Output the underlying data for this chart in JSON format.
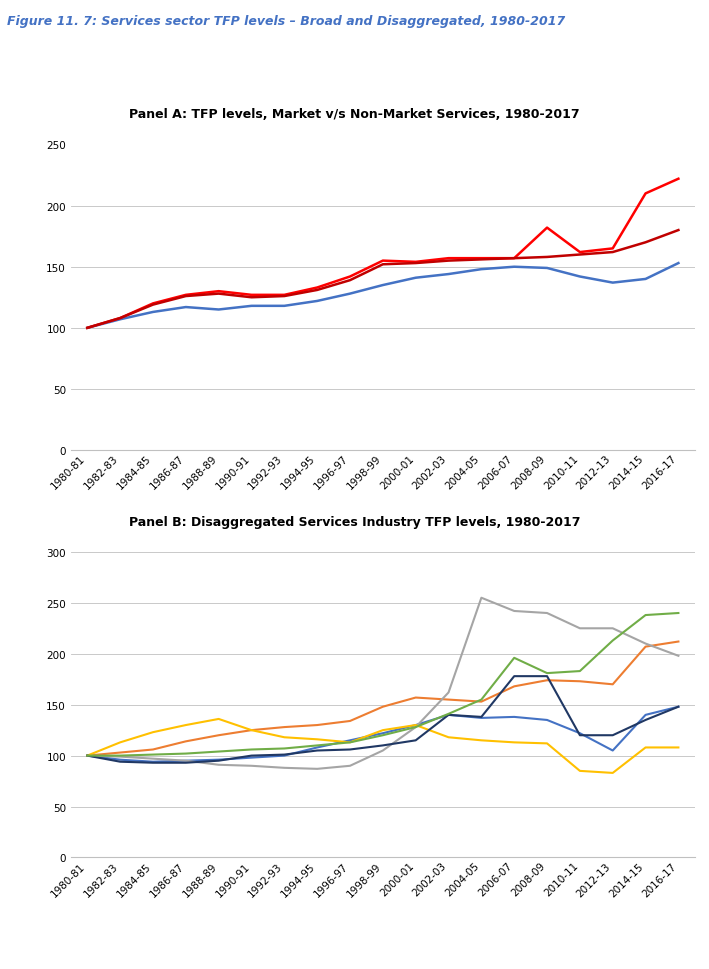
{
  "figure_title": "Figure 11. 7: Services sector TFP levels – Broad and Disaggregated, 1980-2017",
  "panel_a_title": "Panel A: TFP levels, Market v/s Non-Market Services, 1980-2017",
  "panel_b_title": "Panel B: Disaggregated Services Industry TFP levels, 1980-2017",
  "x_labels": [
    "1980-81",
    "1982-83",
    "1984-85",
    "1986-87",
    "1988-89",
    "1990-91",
    "1992-93",
    "1994-95",
    "1996-97",
    "1998-99",
    "2000-01",
    "2002-03",
    "2004-05",
    "2006-07",
    "2008-09",
    "2010-11",
    "2012-13",
    "2014-15",
    "2016-17"
  ],
  "panel_a": {
    "market_services": [
      100,
      107,
      113,
      117,
      115,
      118,
      118,
      122,
      128,
      135,
      141,
      144,
      148,
      150,
      149,
      142,
      137,
      140,
      153
    ],
    "non_market_services": [
      100,
      108,
      120,
      127,
      130,
      127,
      127,
      133,
      142,
      155,
      154,
      157,
      157,
      157,
      182,
      162,
      165,
      210,
      222
    ],
    "all_services": [
      100,
      108,
      119,
      126,
      128,
      125,
      126,
      131,
      139,
      152,
      153,
      155,
      156,
      157,
      158,
      160,
      162,
      170,
      180
    ],
    "colors": {
      "market_services": "#4472C4",
      "non_market_services": "#FF0000",
      "all_services": "#C00000"
    },
    "ylim": [
      0,
      250
    ],
    "yticks": [
      0,
      50,
      100,
      150,
      200,
      250
    ]
  },
  "panel_b": {
    "trade": [
      100,
      96,
      94,
      95,
      96,
      98,
      100,
      108,
      115,
      122,
      130,
      140,
      137,
      138,
      135,
      122,
      105,
      140,
      148
    ],
    "financial_services": [
      100,
      103,
      106,
      114,
      120,
      125,
      128,
      130,
      134,
      148,
      157,
      155,
      153,
      168,
      174,
      173,
      170,
      207,
      212
    ],
    "post_telecom": [
      100,
      99,
      97,
      95,
      91,
      90,
      88,
      87,
      90,
      105,
      128,
      162,
      255,
      242,
      240,
      225,
      225,
      210,
      198
    ],
    "business_service": [
      100,
      113,
      123,
      130,
      136,
      125,
      118,
      116,
      113,
      125,
      130,
      118,
      115,
      113,
      112,
      85,
      83,
      108,
      108
    ],
    "hotels_restaurants": [
      100,
      94,
      93,
      93,
      95,
      100,
      101,
      105,
      106,
      110,
      115,
      140,
      138,
      178,
      178,
      120,
      120,
      135,
      148
    ],
    "transport_storage": [
      100,
      100,
      101,
      102,
      104,
      106,
      107,
      110,
      113,
      120,
      128,
      141,
      155,
      196,
      181,
      183,
      213,
      238,
      240
    ],
    "colors": {
      "trade": "#4472C4",
      "financial_services": "#ED7D31",
      "post_telecom": "#A5A5A5",
      "business_service": "#FFC000",
      "hotels_restaurants": "#203864",
      "transport_storage": "#70AD47"
    },
    "ylim": [
      0,
      300
    ],
    "yticks": [
      0,
      50,
      100,
      150,
      200,
      250,
      300
    ]
  },
  "figure_title_color": "#4472C4",
  "figure_title_fontsize": 9,
  "panel_title_fontsize": 9,
  "tick_fontsize": 7.5,
  "legend_fontsize": 8
}
